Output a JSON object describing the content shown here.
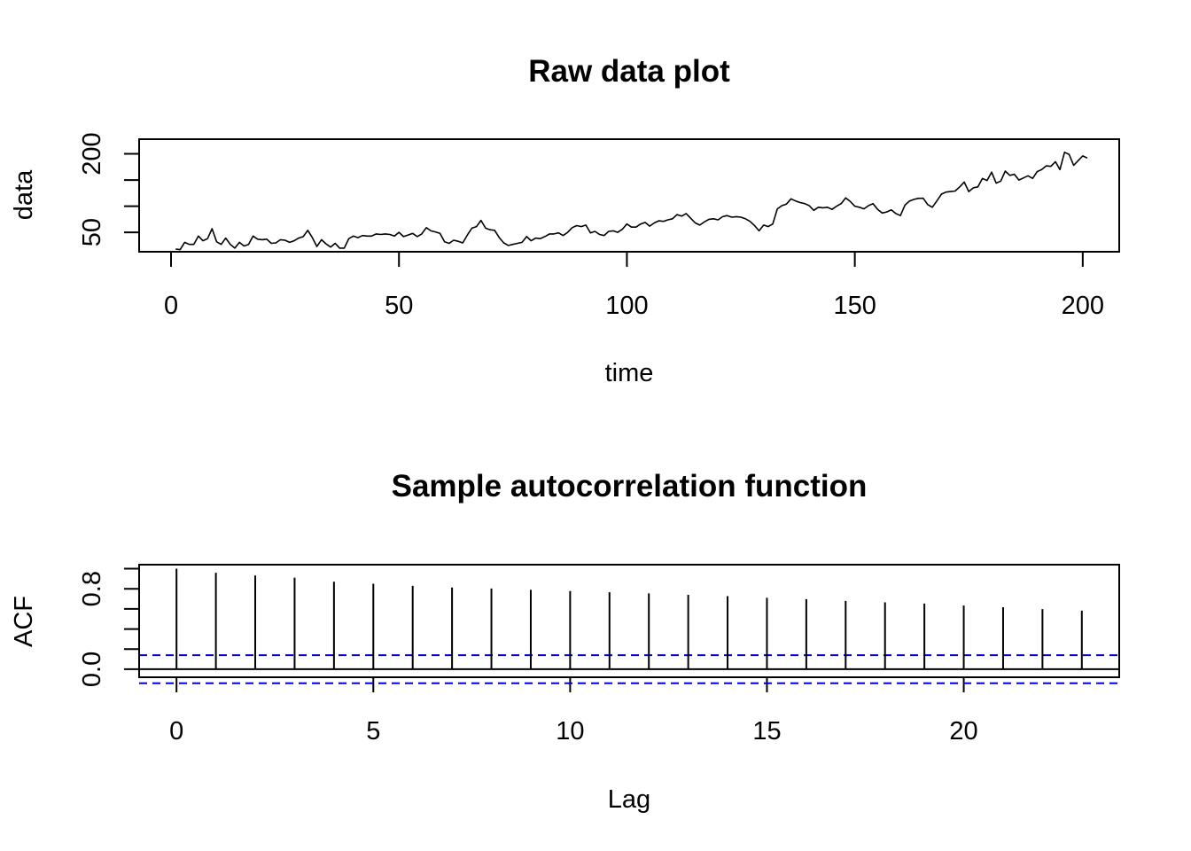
{
  "chart_data": [
    {
      "type": "line",
      "title": "Raw data plot",
      "xlabel": "time",
      "ylabel": "data",
      "xlim": [
        -7,
        208
      ],
      "ylim": [
        13,
        228
      ],
      "xticks": [
        0,
        50,
        100,
        150,
        200
      ],
      "yticks": [
        50,
        200
      ],
      "yminor": [
        50,
        100,
        150,
        200
      ],
      "grid": false,
      "x_start": 1,
      "values": [
        18,
        17,
        31,
        27,
        27,
        43,
        34,
        38,
        57,
        32,
        27,
        39,
        27,
        20,
        31,
        24,
        27,
        43,
        37,
        36,
        37,
        29,
        30,
        36,
        35,
        31,
        34,
        39,
        42,
        54,
        40,
        23,
        36,
        28,
        22,
        29,
        20,
        20,
        38,
        43,
        40,
        44,
        43,
        43,
        47,
        46,
        47,
        46,
        43,
        50,
        42,
        45,
        48,
        42,
        47,
        59,
        53,
        51,
        48,
        32,
        29,
        35,
        33,
        30,
        45,
        58,
        61,
        73,
        58,
        55,
        54,
        40,
        30,
        25,
        27,
        29,
        31,
        42,
        34,
        39,
        38,
        42,
        47,
        47,
        49,
        44,
        50,
        59,
        63,
        61,
        64,
        49,
        52,
        46,
        44,
        52,
        53,
        50,
        56,
        66,
        60,
        60,
        66,
        69,
        62,
        68,
        72,
        71,
        74,
        76,
        84,
        81,
        86,
        77,
        68,
        64,
        70,
        75,
        76,
        74,
        80,
        82,
        79,
        80,
        79,
        76,
        71,
        63,
        53,
        64,
        61,
        66,
        95,
        101,
        104,
        114,
        110,
        107,
        105,
        101,
        92,
        98,
        97,
        98,
        94,
        100,
        105,
        116,
        109,
        100,
        98,
        95,
        101,
        105,
        94,
        87,
        89,
        93,
        86,
        82,
        102,
        110,
        113,
        115,
        115,
        103,
        98,
        110,
        123,
        127,
        128,
        129,
        137,
        146,
        128,
        135,
        137,
        153,
        149,
        165,
        144,
        148,
        167,
        159,
        161,
        150,
        154,
        158,
        153,
        166,
        170,
        177,
        176,
        185,
        170,
        203,
        199,
        178,
        187,
        196,
        192
      ]
    },
    {
      "type": "bar",
      "title": "Sample autocorrelation function",
      "xlabel": "Lag",
      "ylabel": "ACF",
      "xlim": [
        -0.95,
        23.95
      ],
      "ylim": [
        -0.08,
        1.04
      ],
      "xticks": [
        0,
        5,
        10,
        15,
        20
      ],
      "yticks": [
        0.0,
        0.8
      ],
      "yminor": [
        0.0,
        0.2,
        0.4,
        0.6,
        0.8,
        1.0
      ],
      "grid": false,
      "lags": [
        0,
        1,
        2,
        3,
        4,
        5,
        6,
        7,
        8,
        9,
        10,
        11,
        12,
        13,
        14,
        15,
        16,
        17,
        18,
        19,
        20,
        21,
        22,
        23
      ],
      "values": [
        1.0,
        0.96,
        0.933,
        0.911,
        0.87,
        0.85,
        0.83,
        0.813,
        0.803,
        0.79,
        0.778,
        0.765,
        0.755,
        0.74,
        0.727,
        0.71,
        0.697,
        0.68,
        0.665,
        0.653,
        0.633,
        0.617,
        0.598,
        0.583
      ],
      "ci_upper": 0.139,
      "ci_lower": -0.139
    }
  ]
}
